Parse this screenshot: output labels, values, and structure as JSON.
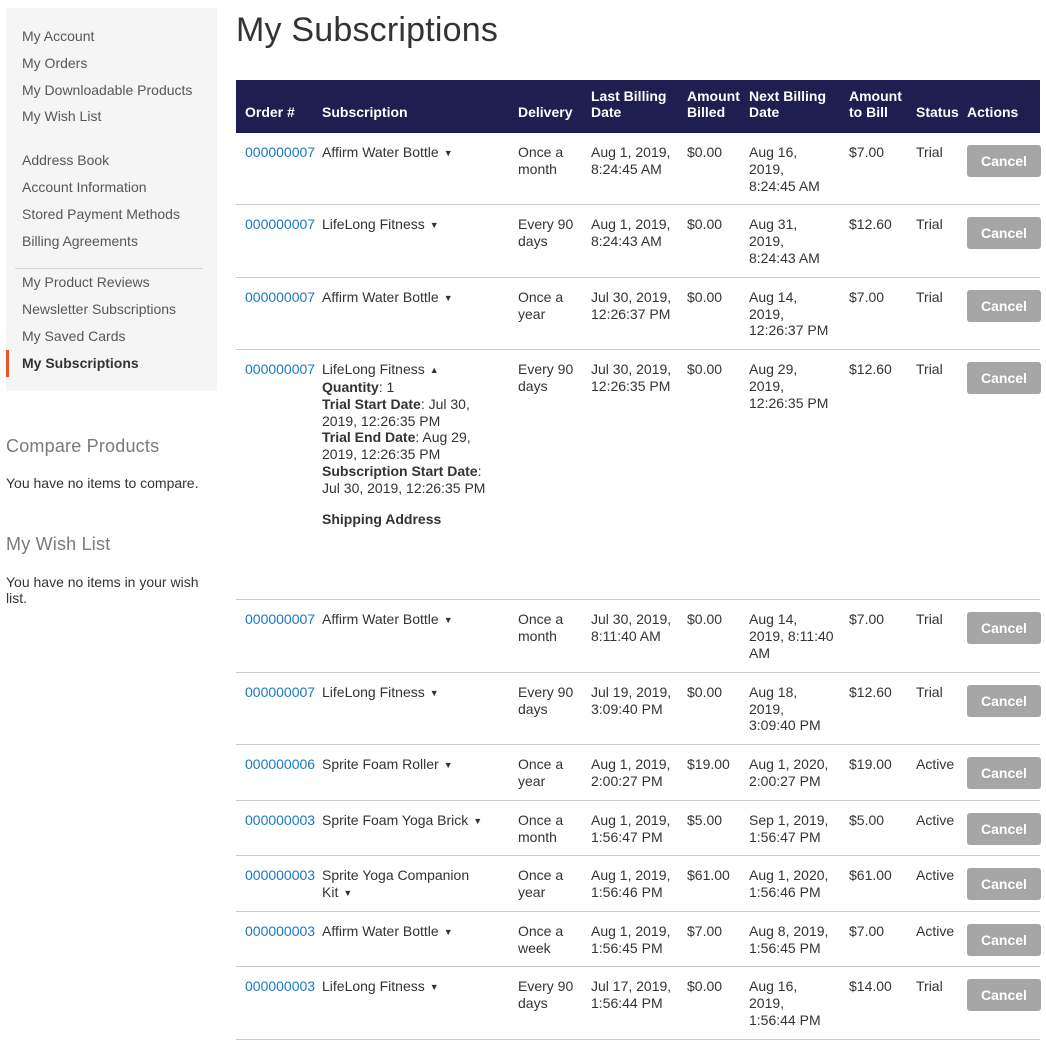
{
  "page_title": "My Subscriptions",
  "sidebar": {
    "current": "My Subscriptions",
    "groups": [
      {
        "items": [
          "My Account",
          "My Orders",
          "My Downloadable Products",
          "My Wish List"
        ]
      },
      {
        "items": [
          "Address Book",
          "Account Information",
          "Stored Payment Methods",
          "Billing Agreements"
        ],
        "divider_after": true
      },
      {
        "items": [
          "My Product Reviews",
          "Newsletter Subscriptions",
          "My Saved Cards",
          "My Subscriptions"
        ]
      }
    ]
  },
  "compare_block": {
    "title": "Compare Products",
    "empty_text": "You have no items to compare."
  },
  "wishlist_block": {
    "title": "My Wish List",
    "empty_text": "You have no items in your wish list."
  },
  "table": {
    "columns": [
      "Order #",
      "Subscription",
      "Delivery",
      "Last Billing Date",
      "Amount Billed",
      "Next Billing Date",
      "Amount to Bill",
      "Status",
      "Actions"
    ],
    "cancel_label": "Cancel",
    "rows": [
      {
        "order": "000000007",
        "product": "Affirm Water Bottle",
        "expanded": false,
        "delivery": "Once a month",
        "last_billing": "Aug 1, 2019, 8:24:45 AM",
        "amount_billed": "$0.00",
        "next_billing": "Aug 16, 2019, 8:24:45 AM",
        "amount_to_bill": "$7.00",
        "status": "Trial"
      },
      {
        "order": "000000007",
        "product": "LifeLong Fitness",
        "expanded": false,
        "delivery": "Every 90 days",
        "last_billing": "Aug 1, 2019, 8:24:43 AM",
        "amount_billed": "$0.00",
        "next_billing": "Aug 31, 2019, 8:24:43 AM",
        "amount_to_bill": "$12.60",
        "status": "Trial"
      },
      {
        "order": "000000007",
        "product": "Affirm Water Bottle",
        "expanded": false,
        "delivery": "Once a year",
        "last_billing": "Jul 30, 2019, 12:26:37 PM",
        "amount_billed": "$0.00",
        "next_billing": "Aug 14, 2019, 12:26:37 PM",
        "amount_to_bill": "$7.00",
        "status": "Trial"
      },
      {
        "order": "000000007",
        "product": "LifeLong Fitness",
        "expanded": true,
        "details": [
          {
            "label": "Quantity",
            "value": "1"
          },
          {
            "label": "Trial Start Date",
            "value": "Jul 30, 2019, 12:26:35 PM"
          },
          {
            "label": "Trial End Date",
            "value": "Aug 29, 2019, 12:26:35 PM"
          },
          {
            "label": "Subscription Start Date",
            "value": "Jul 30, 2019, 12:26:35 PM"
          }
        ],
        "shipping_address_label": "Shipping Address",
        "delivery": "Every 90 days",
        "last_billing": "Jul 30, 2019, 12:26:35 PM",
        "amount_billed": "$0.00",
        "next_billing": "Aug 29, 2019, 12:26:35 PM",
        "amount_to_bill": "$12.60",
        "status": "Trial"
      },
      {
        "order": "000000007",
        "product": "Affirm Water Bottle",
        "expanded": false,
        "delivery": "Once a month",
        "last_billing": "Jul 30, 2019, 8:11:40 AM",
        "amount_billed": "$0.00",
        "next_billing": "Aug 14, 2019, 8:11:40 AM",
        "amount_to_bill": "$7.00",
        "status": "Trial"
      },
      {
        "order": "000000007",
        "product": "LifeLong Fitness",
        "expanded": false,
        "delivery": "Every 90 days",
        "last_billing": "Jul 19, 2019, 3:09:40 PM",
        "amount_billed": "$0.00",
        "next_billing": "Aug 18, 2019, 3:09:40 PM",
        "amount_to_bill": "$12.60",
        "status": "Trial"
      },
      {
        "order": "000000006",
        "product": "Sprite Foam Roller",
        "expanded": false,
        "delivery": "Once a year",
        "last_billing": "Aug 1, 2019, 2:00:27 PM",
        "amount_billed": "$19.00",
        "next_billing": "Aug 1, 2020, 2:00:27 PM",
        "amount_to_bill": "$19.00",
        "status": "Active"
      },
      {
        "order": "000000003",
        "product": "Sprite Foam Yoga Brick",
        "expanded": false,
        "delivery": "Once a month",
        "last_billing": "Aug 1, 2019, 1:56:47 PM",
        "amount_billed": "$5.00",
        "next_billing": "Sep 1, 2019, 1:56:47 PM",
        "amount_to_bill": "$5.00",
        "status": "Active"
      },
      {
        "order": "000000003",
        "product": "Sprite Yoga Companion Kit",
        "expanded": false,
        "delivery": "Once a year",
        "last_billing": "Aug 1, 2019, 1:56:46 PM",
        "amount_billed": "$61.00",
        "next_billing": "Aug 1, 2020, 1:56:46 PM",
        "amount_to_bill": "$61.00",
        "status": "Active"
      },
      {
        "order": "000000003",
        "product": "Affirm Water Bottle",
        "expanded": false,
        "delivery": "Once a week",
        "last_billing": "Aug 1, 2019, 1:56:45 PM",
        "amount_billed": "$7.00",
        "next_billing": "Aug 8, 2019, 1:56:45 PM",
        "amount_to_bill": "$7.00",
        "status": "Active"
      },
      {
        "order": "000000003",
        "product": "LifeLong Fitness",
        "expanded": false,
        "delivery": "Every 90 days",
        "last_billing": "Jul 17, 2019, 1:56:44 PM",
        "amount_billed": "$0.00",
        "next_billing": "Aug 16, 2019, 1:56:44 PM",
        "amount_to_bill": "$14.00",
        "status": "Trial"
      }
    ]
  },
  "icons": {
    "collapsed_arrow": "expand-arrow-icon",
    "expanded_arrow": "collapse-arrow-icon"
  },
  "colors": {
    "accent_orange": "#e8562a",
    "header_navy": "#1e1e50",
    "link_blue": "#1979c3",
    "cancel_button_gray": "#a6a6a6",
    "sidebar_background": "#f5f5f5"
  }
}
